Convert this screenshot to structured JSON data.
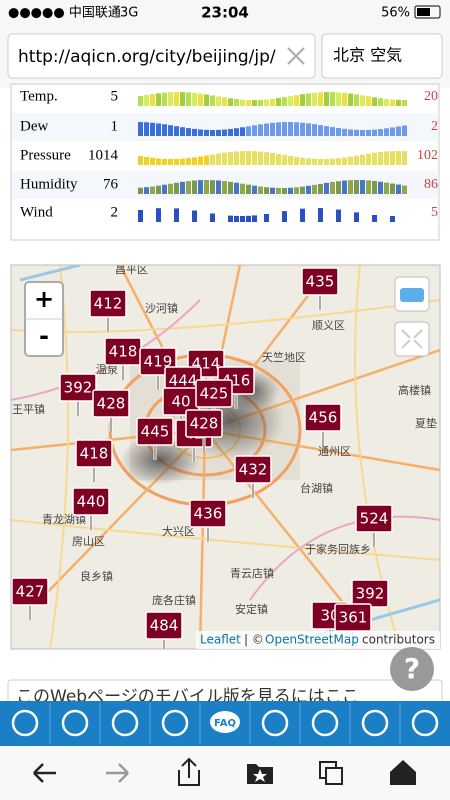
{
  "status_bar": {
    "carrier": "●●●●● 中国联通",
    "network": "3G",
    "time": "23:04",
    "battery": "56%"
  },
  "address_bar": {
    "url": "http://aqicn.org/city/beijing/jp/",
    "search": "北京 空気"
  },
  "weather": {
    "rows": [
      {
        "label": "Temp.",
        "value": 5,
        "max": 20
      },
      {
        "label": "Dew",
        "value": 1,
        "max": 2
      },
      {
        "label": "Pressure",
        "value": 1014,
        "max": 102
      },
      {
        "label": "Humidity",
        "value": 76,
        "max": 86
      },
      {
        "label": "Wind",
        "value": 2,
        "max": 5
      }
    ]
  },
  "map": {
    "zoom_in": "+",
    "zoom_out": "-",
    "places": [
      "昌平区",
      "沙河镇",
      "顺义区",
      "温泉",
      "天竺地区",
      "王平镇",
      "高楼镇",
      "夏垫",
      "通州区",
      "台湖镇",
      "青龙湖镇",
      "房山区",
      "大兴区",
      "于家务回族乡",
      "良乡镇",
      "青云店镇",
      "庞各庄镇",
      "安定镇"
    ],
    "markers": [
      435,
      412,
      418,
      419,
      414,
      392,
      444,
      416,
      40,
      425,
      428,
      445,
      42,
      428,
      456,
      418,
      432,
      440,
      436,
      524,
      427,
      484,
      30,
      392,
      361
    ],
    "attribution": {
      "leaflet": "Leaflet",
      "separator": "| ©",
      "osm": "OpenStreetMap",
      "contributors": "contributors"
    }
  },
  "banner": "このWebページのモバイル版を見るにはここ",
  "help": "?",
  "nav": {
    "faq": "FAQ"
  }
}
